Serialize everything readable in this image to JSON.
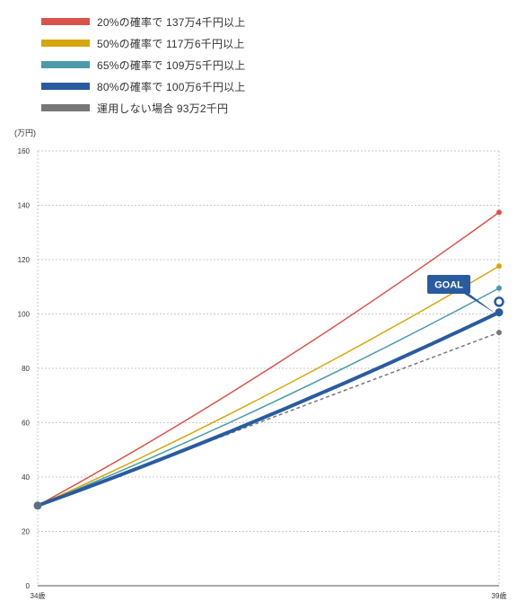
{
  "chart_data": {
    "type": "line",
    "unit_label": "(万円)",
    "categories": [
      "34歳",
      "39歳"
    ],
    "ylim": [
      0,
      160
    ],
    "yticks": [
      0,
      20,
      40,
      60,
      80,
      100,
      120,
      140,
      160
    ],
    "grid": true,
    "legend_position": "top-left",
    "series": [
      {
        "name": "20%の確率で 137万4千円以上",
        "color": "#d9534a",
        "style": "solid",
        "values": [
          29.5,
          137.4
        ]
      },
      {
        "name": "50%の確率で 117万6千円以上",
        "color": "#d7a60f",
        "style": "solid",
        "values": [
          29.5,
          117.6
        ]
      },
      {
        "name": "65%の確率で 109万5千円以上",
        "color": "#4a9aaa",
        "style": "solid",
        "values": [
          29.5,
          109.5
        ]
      },
      {
        "name": "80%の確率で 100万6千円以上",
        "color": "#2a5b9e",
        "style": "thick",
        "values": [
          29.5,
          100.6
        ]
      },
      {
        "name": "運用しない場合 93万2千円",
        "color": "#777777",
        "style": "dashed",
        "values": [
          29.5,
          93.2
        ]
      }
    ],
    "goal": {
      "label": "GOAL",
      "value": 104.5,
      "color": "#2a5b9e"
    }
  }
}
